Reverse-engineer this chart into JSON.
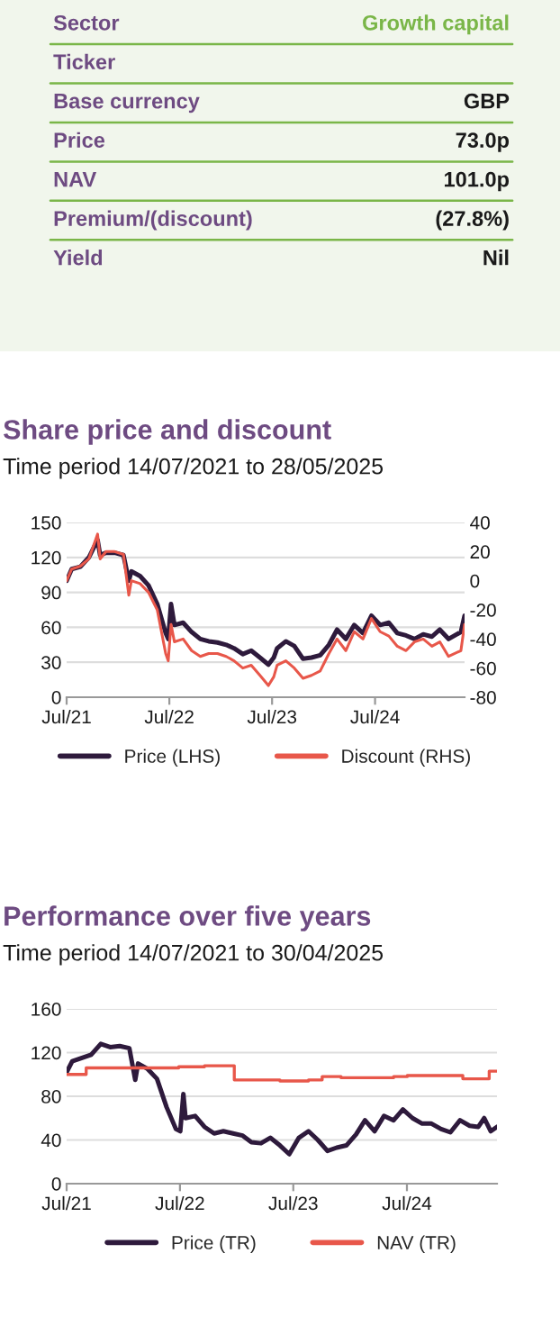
{
  "chart_data": [
    {
      "type": "other",
      "categories": [
        "Sector",
        "Ticker",
        "Base currency",
        "Price",
        "NAV",
        "Premium/(discount)",
        "Yield"
      ],
      "value_labels": [
        "Growth capital",
        null,
        "GBP",
        "73.0p",
        "101.0p",
        "(27.8%)",
        "Nil"
      ]
    },
    {
      "type": "line",
      "title": "Share price and discount",
      "subtitle": "Time period 14/07/2021 to 28/05/2025",
      "legend": "bottom",
      "grid": "y",
      "xlim": [
        "2021-07-14",
        "2025-05-28"
      ],
      "xticks": [
        {
          "value": "2021-07-14",
          "label": "Jul/21"
        },
        {
          "value": "2022-07-14",
          "label": "Jul/22"
        },
        {
          "value": "2023-07-14",
          "label": "Jul/23"
        },
        {
          "value": "2024-07-14",
          "label": "Jul/24"
        }
      ],
      "ylim": [
        0,
        150
      ],
      "yticks": [
        0,
        30,
        60,
        90,
        120,
        150
      ],
      "y2lim": [
        -80,
        40
      ],
      "y2ticks": [
        -80,
        -60,
        -40,
        -20,
        0,
        20,
        40
      ],
      "series": [
        {
          "name": "Price (LHS)",
          "color": "#2e1a3c",
          "x": [
            "2021-07-14",
            "2021-08-01",
            "2021-09-01",
            "2021-10-01",
            "2021-11-01",
            "2021-11-10",
            "2021-12-01",
            "2022-01-01",
            "2022-02-01",
            "2022-02-20",
            "2022-03-01",
            "2022-04-01",
            "2022-05-01",
            "2022-06-01",
            "2022-07-01",
            "2022-07-10",
            "2022-07-20",
            "2022-08-01",
            "2022-09-01",
            "2022-10-01",
            "2022-11-01",
            "2022-12-01",
            "2023-01-01",
            "2023-02-01",
            "2023-03-01",
            "2023-04-01",
            "2023-05-01",
            "2023-06-01",
            "2023-07-01",
            "2023-07-20",
            "2023-08-01",
            "2023-09-01",
            "2023-10-01",
            "2023-11-01",
            "2023-12-01",
            "2024-01-01",
            "2024-02-01",
            "2024-03-01",
            "2024-04-01",
            "2024-05-01",
            "2024-06-01",
            "2024-07-01",
            "2024-08-01",
            "2024-09-01",
            "2024-10-01",
            "2024-11-01",
            "2024-12-01",
            "2025-01-01",
            "2025-02-01",
            "2025-03-01",
            "2025-04-01",
            "2025-05-15",
            "2025-05-28"
          ],
          "values": [
            100,
            110,
            112,
            120,
            135,
            122,
            124,
            124,
            122,
            100,
            108,
            104,
            96,
            80,
            55,
            50,
            80,
            62,
            64,
            56,
            50,
            48,
            47,
            45,
            42,
            37,
            40,
            34,
            28,
            34,
            42,
            48,
            44,
            33,
            34,
            36,
            45,
            58,
            50,
            62,
            55,
            70,
            62,
            64,
            55,
            53,
            50,
            54,
            52,
            58,
            50,
            56,
            70
          ]
        },
        {
          "name": "Discount (RHS)",
          "color": "#e8574a",
          "axis": "y2",
          "x": [
            "2021-07-14",
            "2021-08-01",
            "2021-09-01",
            "2021-10-01",
            "2021-11-01",
            "2021-11-10",
            "2021-12-01",
            "2022-01-01",
            "2022-02-01",
            "2022-02-20",
            "2022-03-01",
            "2022-04-01",
            "2022-05-01",
            "2022-06-01",
            "2022-07-01",
            "2022-07-10",
            "2022-07-20",
            "2022-08-01",
            "2022-09-01",
            "2022-10-01",
            "2022-11-01",
            "2022-12-01",
            "2023-01-01",
            "2023-02-01",
            "2023-03-01",
            "2023-04-01",
            "2023-05-01",
            "2023-06-01",
            "2023-07-01",
            "2023-07-20",
            "2023-08-01",
            "2023-09-01",
            "2023-10-01",
            "2023-11-01",
            "2023-12-01",
            "2024-01-01",
            "2024-02-01",
            "2024-03-01",
            "2024-04-01",
            "2024-05-01",
            "2024-06-01",
            "2024-07-01",
            "2024-08-01",
            "2024-09-01",
            "2024-10-01",
            "2024-11-01",
            "2024-12-01",
            "2025-01-01",
            "2025-02-01",
            "2025-03-01",
            "2025-04-01",
            "2025-05-15",
            "2025-05-28"
          ],
          "values": [
            0,
            8,
            10,
            15,
            32,
            15,
            20,
            20,
            18,
            -10,
            0,
            -2,
            -8,
            -20,
            -50,
            -55,
            -30,
            -42,
            -40,
            -48,
            -52,
            -50,
            -50,
            -52,
            -55,
            -60,
            -58,
            -65,
            -72,
            -66,
            -58,
            -55,
            -60,
            -67,
            -65,
            -62,
            -50,
            -40,
            -48,
            -35,
            -40,
            -26,
            -35,
            -38,
            -45,
            -48,
            -42,
            -40,
            -45,
            -42,
            -52,
            -48,
            -30
          ]
        }
      ]
    },
    {
      "type": "line",
      "title": "Performance over five years",
      "subtitle": "Time period 14/07/2021 to 30/04/2025",
      "legend": "bottom",
      "grid": "y",
      "xlim": [
        "2021-07-14",
        "2025-04-30"
      ],
      "xticks": [
        {
          "value": "2021-07-14",
          "label": "Jul/21"
        },
        {
          "value": "2022-07-14",
          "label": "Jul/22"
        },
        {
          "value": "2023-07-14",
          "label": "Jul/23"
        },
        {
          "value": "2024-07-14",
          "label": "Jul/24"
        }
      ],
      "ylim": [
        0,
        160
      ],
      "yticks": [
        0,
        40,
        80,
        120,
        160
      ],
      "series": [
        {
          "name": "Price (TR)",
          "color": "#2e1a3c",
          "x": [
            "2021-07-14",
            "2021-08-01",
            "2021-10-01",
            "2021-11-01",
            "2021-12-01",
            "2022-01-01",
            "2022-02-01",
            "2022-02-20",
            "2022-03-01",
            "2022-04-01",
            "2022-05-01",
            "2022-06-01",
            "2022-07-01",
            "2022-07-15",
            "2022-07-25",
            "2022-08-01",
            "2022-09-01",
            "2022-10-01",
            "2022-11-01",
            "2022-12-01",
            "2023-01-01",
            "2023-02-01",
            "2023-03-01",
            "2023-04-01",
            "2023-05-01",
            "2023-06-01",
            "2023-07-01",
            "2023-08-01",
            "2023-09-01",
            "2023-10-01",
            "2023-11-01",
            "2023-12-01",
            "2024-01-01",
            "2024-02-01",
            "2024-03-01",
            "2024-04-01",
            "2024-05-01",
            "2024-06-01",
            "2024-07-01",
            "2024-08-01",
            "2024-09-01",
            "2024-10-01",
            "2024-11-01",
            "2024-12-01",
            "2025-01-01",
            "2025-02-01",
            "2025-03-01",
            "2025-03-20",
            "2025-04-10",
            "2025-04-30"
          ],
          "values": [
            102,
            112,
            118,
            128,
            125,
            126,
            124,
            95,
            110,
            105,
            96,
            70,
            50,
            48,
            82,
            60,
            62,
            52,
            46,
            48,
            46,
            44,
            38,
            37,
            42,
            35,
            27,
            42,
            48,
            40,
            30,
            33,
            35,
            45,
            58,
            48,
            62,
            58,
            68,
            60,
            55,
            55,
            50,
            47,
            58,
            53,
            52,
            60,
            48,
            52
          ]
        },
        {
          "name": "NAV (TR)",
          "type": "step",
          "color": "#e8574a",
          "x": [
            "2021-07-14",
            "2021-09-15",
            "2022-07-10",
            "2022-10-01",
            "2023-01-05",
            "2023-06-01",
            "2023-09-01",
            "2023-10-15",
            "2023-12-15",
            "2024-06-01",
            "2024-07-15",
            "2025-01-10",
            "2025-04-05",
            "2025-04-30"
          ],
          "values": [
            100,
            106,
            107,
            108,
            95,
            94,
            95,
            98,
            97,
            98,
            99,
            96,
            103,
            103
          ]
        }
      ]
    }
  ]
}
